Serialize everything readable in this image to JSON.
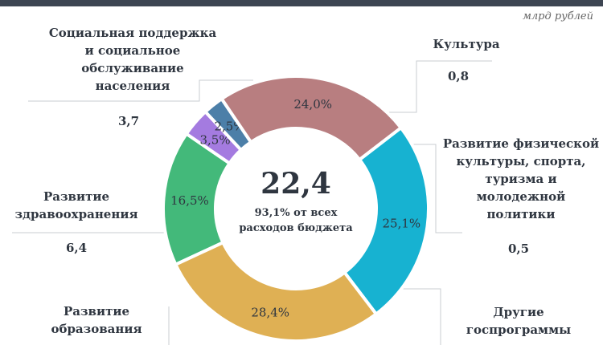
{
  "unit_label": "млрд рублей",
  "center": {
    "total": "22,4",
    "subtitle_line1": "93,1% от всех",
    "subtitle_line2": "расходов бюджета"
  },
  "chart_data": {
    "type": "pie",
    "total": 22.4,
    "segments": [
      {
        "name": "Социальная поддержка и социальное обслуживание населения",
        "label_lines": [
          "Социальная поддержка",
          "и социальное",
          "обслуживание",
          "населения"
        ],
        "value": 3.7,
        "value_label": "3,7",
        "percent": 16.5,
        "percent_label": "16,5%",
        "color": "#43b97a"
      },
      {
        "name": "Культура",
        "label_lines": [
          "Культура"
        ],
        "value": 0.8,
        "value_label": "0,8",
        "percent": 3.5,
        "percent_label": "3,5%",
        "color": "#a47be0"
      },
      {
        "name": "Развитие физической культуры, спорта, туризма и молодежной политики",
        "label_lines": [
          "Развитие физической",
          "культуры, спорта,",
          "туризма и",
          "молодежной",
          "политики"
        ],
        "value": 0.5,
        "value_label": "0,5",
        "percent": 2.5,
        "percent_label": "2,5%",
        "color": "#4c7fa8"
      },
      {
        "name": "Другие госпрограммы",
        "label_lines": [
          "Другие",
          "госпрограммы"
        ],
        "value": null,
        "value_label": "",
        "percent": 24.0,
        "percent_label": "24,0%",
        "color": "#b87e80"
      },
      {
        "name": "Развитие образования",
        "label_lines": [
          "Развитие",
          "образования"
        ],
        "value": null,
        "value_label": "",
        "percent": 25.1,
        "percent_label": "25,1%",
        "color": "#17b2d1"
      },
      {
        "name": "Развитие здравоохранения",
        "label_lines": [
          "Развитие",
          "здравоохранения"
        ],
        "value": 6.4,
        "value_label": "6,4",
        "percent": 28.4,
        "percent_label": "28,4%",
        "color": "#dfb054"
      }
    ]
  }
}
